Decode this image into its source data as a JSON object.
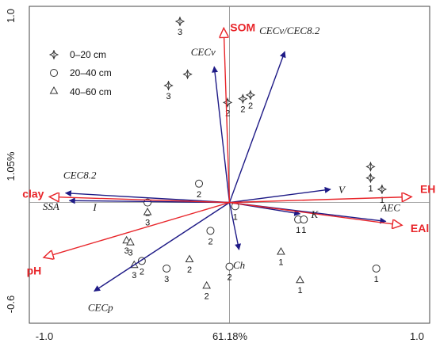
{
  "chart_data": {
    "type": "scatter",
    "subtype": "biplot",
    "axes": {
      "x_ticks": [
        "-1.0",
        "1.0"
      ],
      "y_ticks": [
        "1.0",
        "-0.6"
      ],
      "xlabel": "61.18%",
      "ylabel": "1.05%",
      "xlim": [
        -1.05,
        1.05
      ],
      "ylim": [
        -0.64,
        1.04
      ],
      "grid": false,
      "zero_lines": true
    },
    "legend": {
      "position": "top-left",
      "items": [
        {
          "label": "0–20 cm",
          "marker": "star"
        },
        {
          "label": "20–40 cm",
          "marker": "circle"
        },
        {
          "label": "40–60 cm",
          "marker": "triangle"
        }
      ]
    },
    "colors": {
      "response": "#e8252a",
      "explanatory": "#1e1a86",
      "points": "#333333"
    },
    "response_vectors": [
      {
        "label": "SOM",
        "x": -0.03,
        "y": 0.92
      },
      {
        "label": "clay",
        "x": -0.94,
        "y": 0.03
      },
      {
        "label": "pH",
        "x": -0.97,
        "y": -0.29
      },
      {
        "label": "EH",
        "x": 0.95,
        "y": 0.03
      },
      {
        "label": "EAl",
        "x": 0.9,
        "y": -0.12
      }
    ],
    "explanatory_vectors": [
      {
        "label": "CECv",
        "x": -0.08,
        "y": 0.72
      },
      {
        "label": "CECv/CEC8.2",
        "x": 0.29,
        "y": 0.8
      },
      {
        "label": "CEC8.2",
        "x": -0.86,
        "y": 0.05
      },
      {
        "label": "I",
        "x": -0.84,
        "y": 0.01
      },
      {
        "label": "V",
        "x": 0.53,
        "y": 0.07
      },
      {
        "label": "AEC",
        "x": 0.82,
        "y": -0.1
      },
      {
        "label": "K",
        "x": 0.37,
        "y": -0.06
      },
      {
        "label": "Ch",
        "x": 0.05,
        "y": -0.25
      },
      {
        "label": "CECp",
        "x": -0.71,
        "y": -0.47
      }
    ],
    "extra_labels": [
      {
        "label": "SSA",
        "x": -0.98,
        "y": -0.04
      }
    ],
    "points": [
      {
        "x": -0.26,
        "y": 0.96,
        "depth": "0–20 cm",
        "label": "3"
      },
      {
        "x": -0.22,
        "y": 0.68,
        "depth": "0–20 cm",
        "label": ""
      },
      {
        "x": -0.32,
        "y": 0.62,
        "depth": "0–20 cm",
        "label": "3"
      },
      {
        "x": -0.01,
        "y": 0.53,
        "depth": "0–20 cm",
        "label": "2"
      },
      {
        "x": 0.07,
        "y": 0.55,
        "depth": "0–20 cm",
        "label": "2"
      },
      {
        "x": 0.11,
        "y": 0.57,
        "depth": "0–20 cm",
        "label": "2"
      },
      {
        "x": 0.74,
        "y": 0.19,
        "depth": "0–20 cm",
        "label": "1"
      },
      {
        "x": 0.74,
        "y": 0.13,
        "depth": "0–20 cm",
        "label": "1"
      },
      {
        "x": 0.8,
        "y": 0.07,
        "depth": "0–20 cm",
        "label": "1"
      },
      {
        "x": -0.16,
        "y": 0.1,
        "depth": "20–40 cm",
        "label": "2"
      },
      {
        "x": -0.43,
        "y": 0.0,
        "depth": "20–40 cm",
        "label": "2"
      },
      {
        "x": 0.03,
        "y": -0.02,
        "depth": "20–40 cm",
        "label": "1"
      },
      {
        "x": 0.36,
        "y": -0.09,
        "depth": "20–40 cm",
        "label": "1"
      },
      {
        "x": 0.39,
        "y": -0.09,
        "depth": "20–40 cm",
        "label": "1"
      },
      {
        "x": -0.1,
        "y": -0.15,
        "depth": "20–40 cm",
        "label": "2"
      },
      {
        "x": -0.46,
        "y": -0.31,
        "depth": "20–40 cm",
        "label": "2"
      },
      {
        "x": -0.33,
        "y": -0.35,
        "depth": "20–40 cm",
        "label": "3"
      },
      {
        "x": 0.0,
        "y": -0.34,
        "depth": "20–40 cm",
        "label": "2"
      },
      {
        "x": 0.77,
        "y": -0.35,
        "depth": "20–40 cm",
        "label": "1"
      },
      {
        "x": -0.43,
        "y": -0.05,
        "depth": "40–60 cm",
        "label": "3"
      },
      {
        "x": -0.54,
        "y": -0.2,
        "depth": "40–60 cm",
        "label": "3"
      },
      {
        "x": -0.52,
        "y": -0.21,
        "depth": "40–60 cm",
        "label": "3"
      },
      {
        "x": -0.5,
        "y": -0.33,
        "depth": "40–60 cm",
        "label": "3"
      },
      {
        "x": -0.21,
        "y": -0.3,
        "depth": "40–60 cm",
        "label": "2"
      },
      {
        "x": -0.12,
        "y": -0.44,
        "depth": "40–60 cm",
        "label": "2"
      },
      {
        "x": 0.27,
        "y": -0.26,
        "depth": "40–60 cm",
        "label": "1"
      },
      {
        "x": 0.37,
        "y": -0.41,
        "depth": "40–60 cm",
        "label": "1"
      }
    ]
  }
}
